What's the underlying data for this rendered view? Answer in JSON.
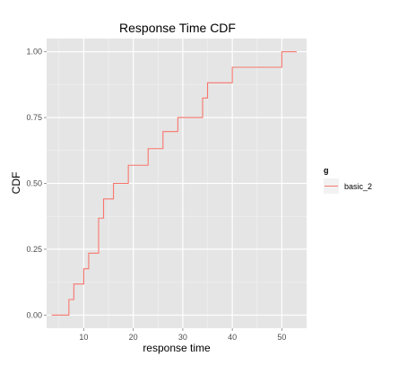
{
  "chart_data": {
    "type": "line",
    "step": true,
    "title": "Response Time CDF",
    "xlabel": "response time",
    "ylabel": "CDF",
    "xlim": [
      2.5,
      55
    ],
    "ylim": [
      -0.05,
      1.05
    ],
    "x_ticks": [
      10,
      20,
      30,
      40,
      50
    ],
    "y_ticks": [
      0.0,
      0.25,
      0.5,
      0.75,
      1.0
    ],
    "y_tick_labels": [
      "0.00",
      "0.25",
      "0.50",
      "0.75",
      "1.00"
    ],
    "grid": true,
    "legend": {
      "title": "g",
      "placement": "right"
    },
    "series": [
      {
        "name": "basic_2",
        "color": "#F8766D",
        "x": [
          3.5,
          7,
          8,
          10,
          11,
          13,
          14,
          16,
          19,
          23,
          26,
          29,
          34,
          35,
          40,
          50,
          53
        ],
        "y": [
          0.0,
          0.059,
          0.118,
          0.176,
          0.235,
          0.368,
          0.441,
          0.5,
          0.569,
          0.632,
          0.697,
          0.75,
          0.824,
          0.882,
          0.941,
          1.0,
          1.0
        ]
      }
    ]
  }
}
